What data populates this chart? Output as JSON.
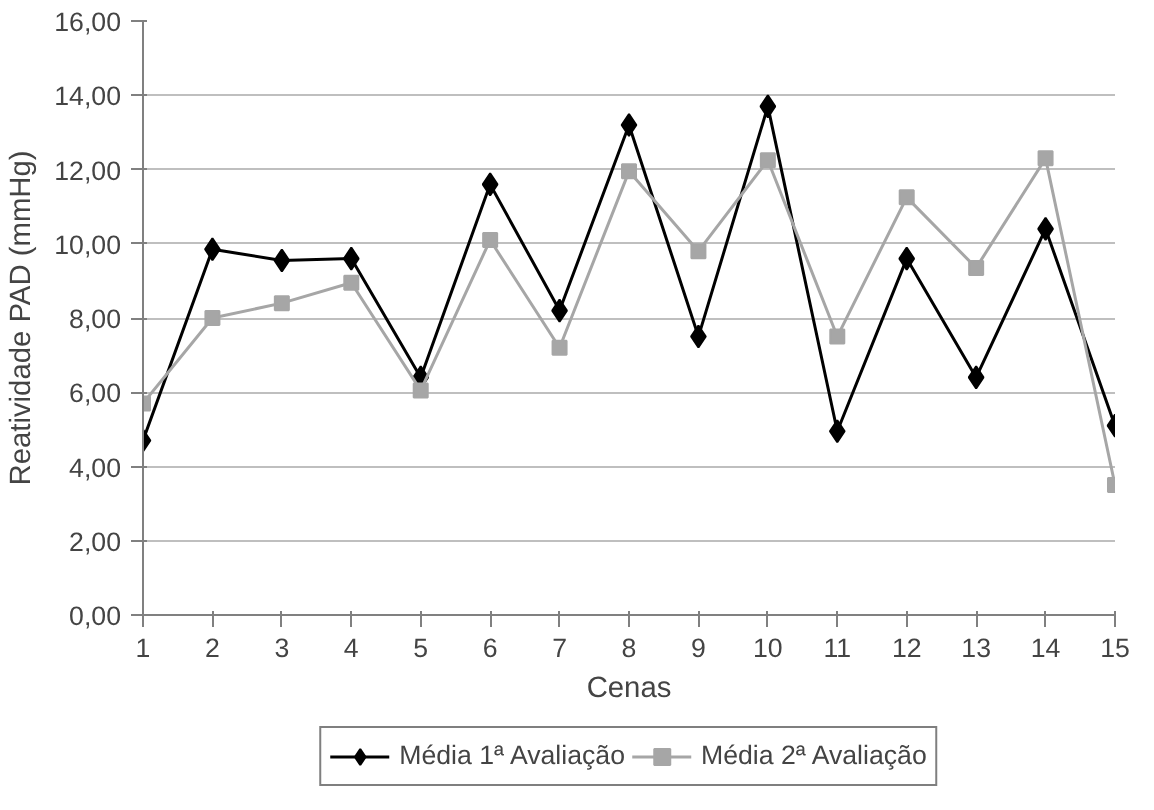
{
  "chart_data": {
    "type": "line",
    "xlabel": "Cenas",
    "ylabel": "Reatividade PAD (mmHg)",
    "x": [
      1,
      2,
      3,
      4,
      5,
      6,
      7,
      8,
      9,
      10,
      11,
      12,
      13,
      14,
      15
    ],
    "xlim": [
      1,
      15
    ],
    "xticks": [
      1,
      2,
      3,
      4,
      5,
      6,
      7,
      8,
      9,
      10,
      11,
      12,
      13,
      14,
      15
    ],
    "ylim": [
      0,
      16
    ],
    "yticks": [
      {
        "value": 0,
        "label": "0,00"
      },
      {
        "value": 2,
        "label": "2,00"
      },
      {
        "value": 4,
        "label": "4,00"
      },
      {
        "value": 6,
        "label": "6,00"
      },
      {
        "value": 8,
        "label": "8,00"
      },
      {
        "value": 10,
        "label": "10,00"
      },
      {
        "value": 12,
        "label": "12,00"
      },
      {
        "value": 14,
        "label": "14,00"
      },
      {
        "value": 16,
        "label": "16,00"
      }
    ],
    "grid": "y",
    "legend": "bottom",
    "line_style": "solid",
    "series": [
      {
        "name": "Média 1ª Avaliação",
        "color": "#000000",
        "marker": "diamond",
        "values": [
          4.7,
          9.85,
          9.55,
          9.6,
          6.4,
          11.6,
          8.2,
          13.2,
          7.5,
          13.7,
          4.95,
          9.6,
          6.4,
          10.4,
          5.1
        ]
      },
      {
        "name": "Média 2ª Avaliação",
        "color": "#a6a6a6",
        "marker": "square",
        "values": [
          5.7,
          8.0,
          8.4,
          8.95,
          6.05,
          10.1,
          7.2,
          11.95,
          9.8,
          12.25,
          7.5,
          11.25,
          9.35,
          12.3,
          3.5
        ]
      }
    ]
  }
}
